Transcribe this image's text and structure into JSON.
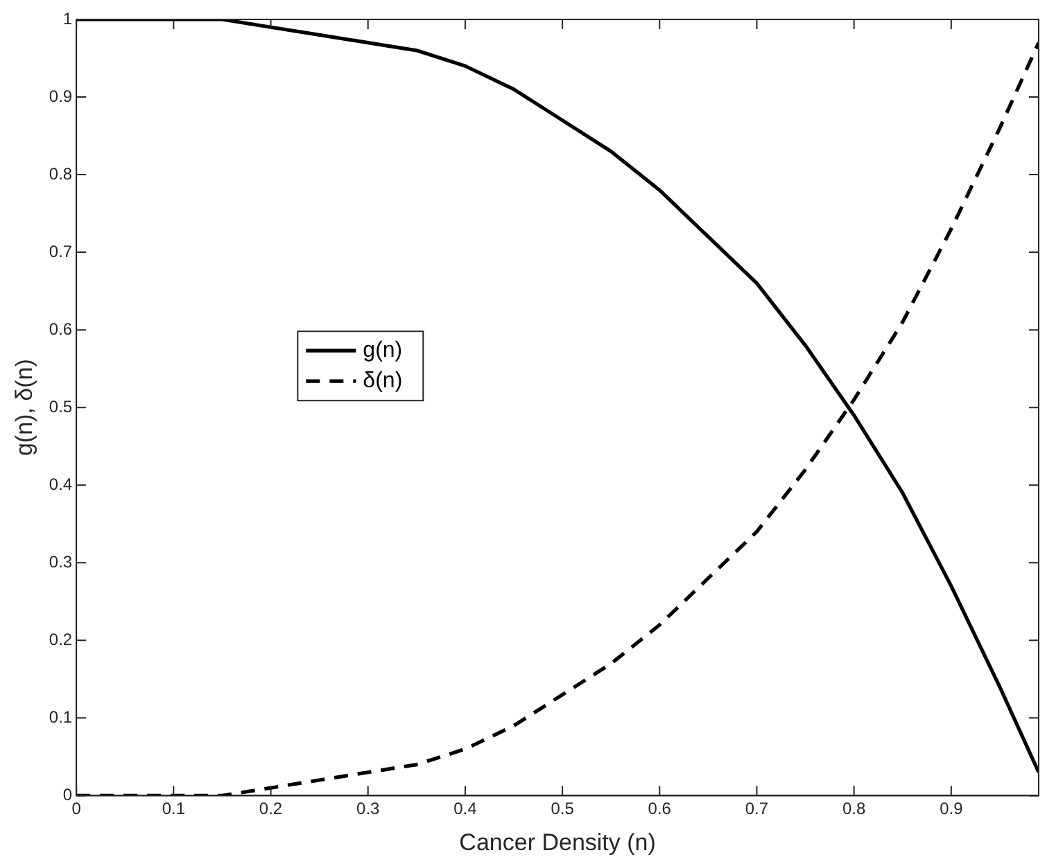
{
  "chart_data": {
    "type": "line",
    "xlabel": "Cancer Density (n)",
    "ylabel": "g(n), δ(n)",
    "x": [
      0,
      0.05,
      0.1,
      0.15,
      0.2,
      0.25,
      0.3,
      0.35,
      0.4,
      0.45,
      0.5,
      0.55,
      0.6,
      0.65,
      0.7,
      0.75,
      0.8,
      0.85,
      0.9,
      0.95,
      0.99
    ],
    "series": [
      {
        "name": "g(n)",
        "color": "#000000",
        "line_style": "solid",
        "values": [
          1,
          1,
          1,
          1,
          0.99,
          0.98,
          0.97,
          0.96,
          0.94,
          0.91,
          0.87,
          0.83,
          0.78,
          0.72,
          0.66,
          0.58,
          0.49,
          0.39,
          0.27,
          0.14,
          0.03
        ]
      },
      {
        "name": "δ(n)",
        "color": "#000000",
        "line_style": "dashed",
        "values": [
          0,
          0,
          0,
          0,
          0.01,
          0.02,
          0.03,
          0.04,
          0.06,
          0.09,
          0.13,
          0.17,
          0.22,
          0.28,
          0.34,
          0.42,
          0.51,
          0.61,
          0.73,
          0.86,
          0.97
        ]
      }
    ],
    "xlim": [
      0,
      0.99
    ],
    "xticks": [
      0,
      0.1,
      0.2,
      0.3,
      0.4,
      0.5,
      0.6,
      0.7,
      0.8,
      0.9
    ],
    "ylim": [
      0,
      1
    ],
    "yticks": [
      0,
      0.1,
      0.2,
      0.3,
      0.4,
      0.5,
      0.6,
      0.7,
      0.8,
      0.9,
      1
    ],
    "grid": false,
    "legend": "left",
    "marker": "none"
  }
}
